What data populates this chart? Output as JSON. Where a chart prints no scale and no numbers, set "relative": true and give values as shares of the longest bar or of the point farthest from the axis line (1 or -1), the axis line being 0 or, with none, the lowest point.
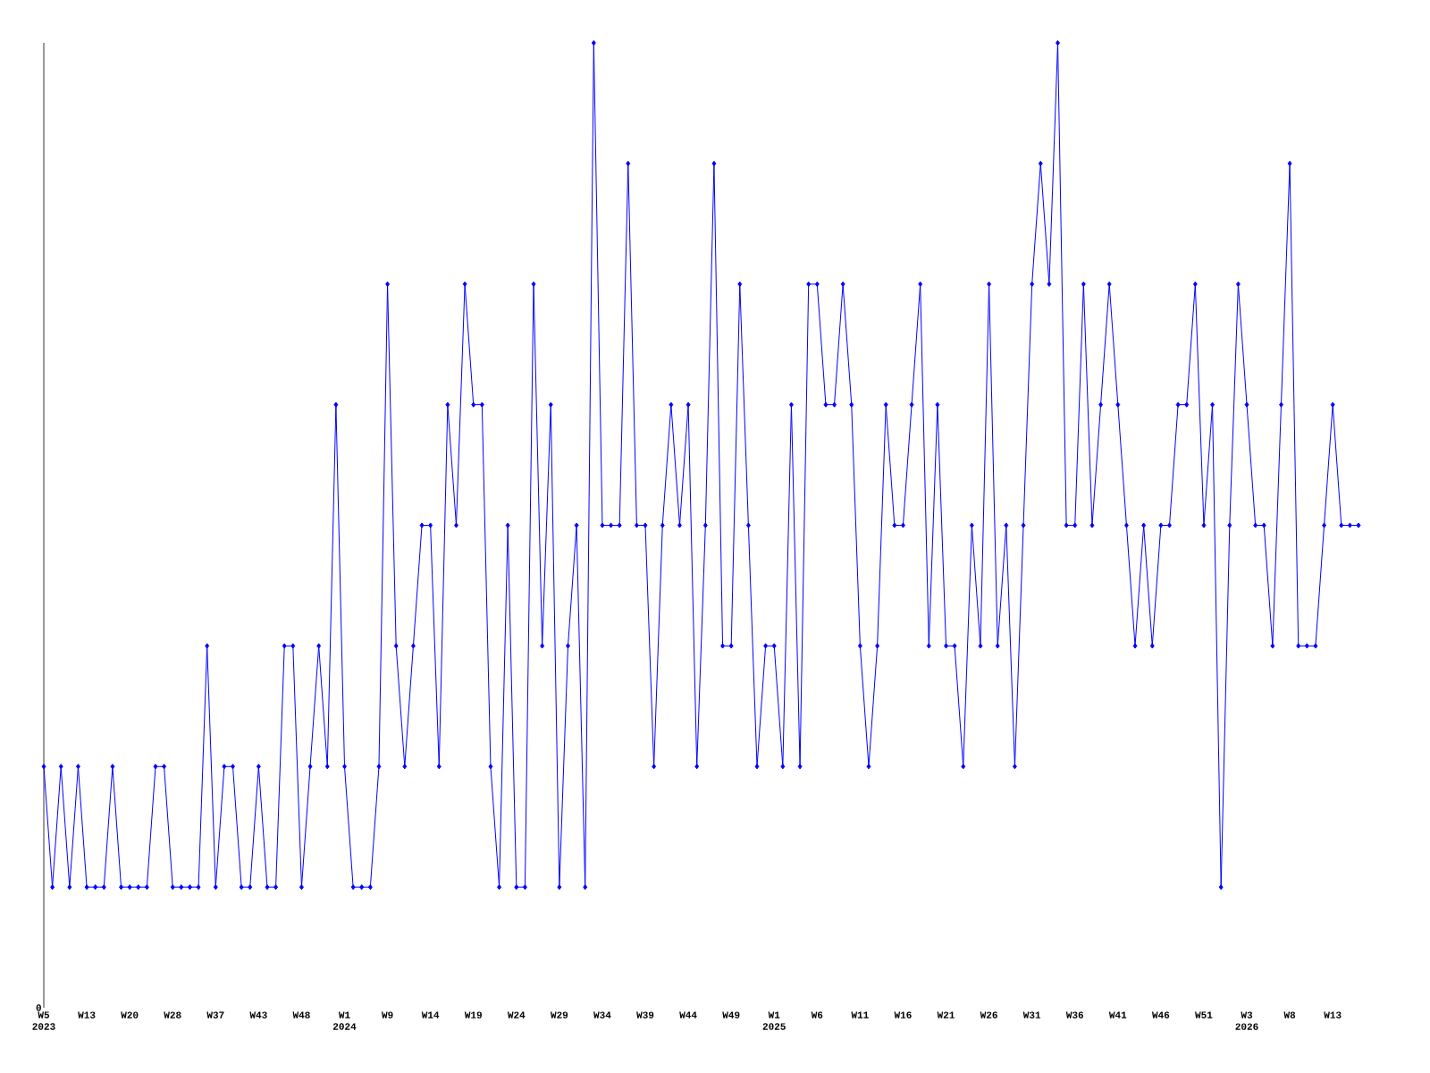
{
  "chart_data": {
    "type": "line",
    "relative": true,
    "color": "#0000ff",
    "marker": "diamond",
    "line_style": "solid",
    "annotations": [
      "0"
    ],
    "categories": [
      "W5 2023",
      null,
      null,
      null,
      null,
      "W13",
      null,
      null,
      null,
      null,
      "W20",
      null,
      null,
      null,
      null,
      "W28",
      null,
      null,
      null,
      null,
      "W37",
      null,
      null,
      null,
      null,
      "W43",
      null,
      null,
      null,
      null,
      "W48",
      null,
      null,
      null,
      null,
      "W1 2024",
      null,
      null,
      null,
      null,
      "W9",
      null,
      null,
      null,
      null,
      "W14",
      null,
      null,
      null,
      null,
      "W19",
      null,
      null,
      null,
      null,
      "W24",
      null,
      null,
      null,
      null,
      "W29",
      null,
      null,
      null,
      null,
      "W34",
      null,
      null,
      null,
      null,
      "W39",
      null,
      null,
      null,
      null,
      "W44",
      null,
      null,
      null,
      null,
      "W49",
      null,
      null,
      null,
      null,
      "W1 2025",
      null,
      null,
      null,
      null,
      "W6",
      null,
      null,
      null,
      null,
      "W11",
      null,
      null,
      null,
      null,
      "W16",
      null,
      null,
      null,
      null,
      "W21",
      null,
      null,
      null,
      null,
      "W26",
      null,
      null,
      null,
      null,
      "W31",
      null,
      null,
      null,
      null,
      "W36",
      null,
      null,
      null,
      null,
      "W41",
      null,
      null,
      null,
      null,
      "W46",
      null,
      null,
      null,
      null,
      "W51",
      null,
      null,
      null,
      null,
      "W3 2026",
      null,
      null,
      null,
      null,
      "W8",
      null,
      null,
      null,
      null,
      "W13",
      null,
      null,
      null
    ],
    "values": [
      0.25,
      0.125,
      0.25,
      0.125,
      0.25,
      0.125,
      0.125,
      0.125,
      0.25,
      0.125,
      0.125,
      0.125,
      0.125,
      0.25,
      0.25,
      0.125,
      0.125,
      0.125,
      0.125,
      0.375,
      0.125,
      0.25,
      0.25,
      0.125,
      0.125,
      0.25,
      0.125,
      0.125,
      0.375,
      0.375,
      0.125,
      0.25,
      0.375,
      0.25,
      0.625,
      0.25,
      0.125,
      0.125,
      0.125,
      0.25,
      0.75,
      0.375,
      0.25,
      0.375,
      0.5,
      0.5,
      0.25,
      0.625,
      0.5,
      0.75,
      0.625,
      0.625,
      0.25,
      0.125,
      0.5,
      0.125,
      0.125,
      0.75,
      0.375,
      0.625,
      0.125,
      0.375,
      0.5,
      0.125,
      1,
      0.5,
      0.5,
      0.5,
      0.875,
      0.5,
      0.5,
      0.25,
      0.5,
      0.625,
      0.5,
      0.625,
      0.25,
      0.5,
      0.875,
      0.375,
      0.375,
      0.75,
      0.5,
      0.25,
      0.375,
      0.375,
      0.25,
      0.625,
      0.25,
      0.75,
      0.75,
      0.625,
      0.625,
      0.75,
      0.625,
      0.375,
      0.25,
      0.375,
      0.625,
      0.5,
      0.5,
      0.625,
      0.75,
      0.375,
      0.625,
      0.375,
      0.375,
      0.25,
      0.5,
      0.375,
      0.75,
      0.375,
      0.5,
      0.25,
      0.5,
      0.75,
      0.875,
      0.75,
      1,
      0.5,
      0.5,
      0.75,
      0.5,
      0.625,
      0.75,
      0.625,
      0.5,
      0.375,
      0.5,
      0.375,
      0.5,
      0.5,
      0.625,
      0.625,
      0.75,
      0.5,
      0.625,
      0.125,
      0.5,
      0.75,
      0.625,
      0.5,
      0.5,
      0.375,
      0.625,
      0.875,
      0.375,
      0.375,
      0.375,
      0.5,
      0.625,
      0.5,
      0.5,
      0.5
    ]
  }
}
